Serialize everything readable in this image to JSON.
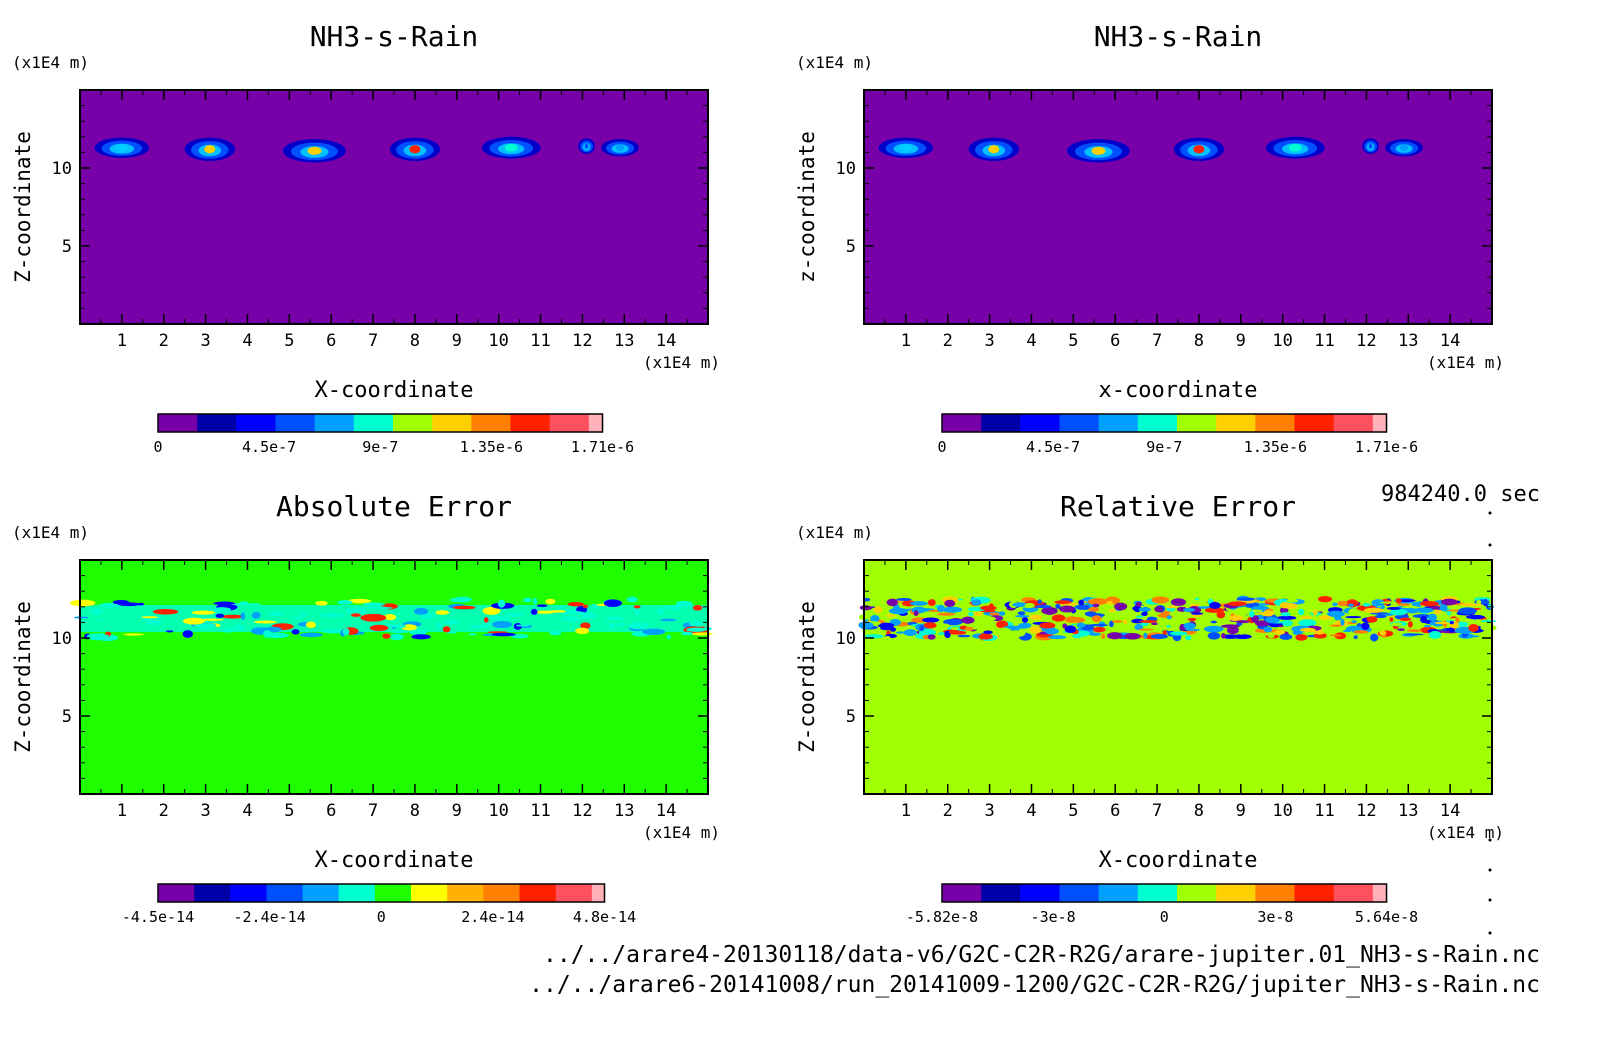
{
  "chart_data": [
    {
      "type": "heatmap",
      "title": "NH3-s-Rain",
      "unit_label": "(x1E4 m)",
      "xlabel": "X-coordinate",
      "ylabel": "Z-coordinate",
      "x_unit": "(x1E4 m)",
      "xlim": [
        0,
        15
      ],
      "ylim": [
        0,
        15
      ],
      "x_ticks": [
        1,
        2,
        3,
        4,
        5,
        6,
        7,
        8,
        9,
        10,
        11,
        12,
        13,
        14
      ],
      "y_ticks": [
        5,
        10
      ],
      "background_color": "#7800a8",
      "colorbar_colors": [
        "#7800a8",
        "#0000a8",
        "#0000ff",
        "#0050ff",
        "#00a0ff",
        "#00ffd0",
        "#a0ff00",
        "#ffd000",
        "#ff8000",
        "#ff2000",
        "#ff5060",
        "#ffb0b8"
      ],
      "colorbar_labels": [
        "0",
        "4.5e-7",
        "9e-7",
        "1.35e-6",
        "1.71e-6"
      ],
      "features": [
        {
          "x": 1.0,
          "z": 11.3,
          "w": 1.3,
          "h": 1.3,
          "peak": "#00d0ff"
        },
        {
          "x": 3.1,
          "z": 11.2,
          "w": 1.2,
          "h": 1.5,
          "peak": "#ffd000"
        },
        {
          "x": 5.6,
          "z": 11.1,
          "w": 1.5,
          "h": 1.5,
          "peak": "#ffd000"
        },
        {
          "x": 8.0,
          "z": 11.2,
          "w": 1.2,
          "h": 1.5,
          "peak": "#ff2000"
        },
        {
          "x": 10.3,
          "z": 11.3,
          "w": 1.4,
          "h": 1.4,
          "peak": "#00ffd0"
        },
        {
          "x": 12.1,
          "z": 11.4,
          "w": 0.4,
          "h": 1.0,
          "peak": "#0050ff"
        },
        {
          "x": 12.9,
          "z": 11.3,
          "w": 0.9,
          "h": 1.1,
          "peak": "#00a0ff"
        }
      ]
    },
    {
      "type": "heatmap",
      "title": "NH3-s-Rain",
      "unit_label": "(x1E4 m)",
      "xlabel": "x-coordinate",
      "ylabel": "z-coordinate",
      "x_unit": "(x1E4 m)",
      "xlim": [
        0,
        15
      ],
      "ylim": [
        0,
        15
      ],
      "x_ticks": [
        1,
        2,
        3,
        4,
        5,
        6,
        7,
        8,
        9,
        10,
        11,
        12,
        13,
        14
      ],
      "y_ticks": [
        5,
        10
      ],
      "background_color": "#7800a8",
      "colorbar_colors": [
        "#7800a8",
        "#0000a8",
        "#0000ff",
        "#0050ff",
        "#00a0ff",
        "#00ffd0",
        "#a0ff00",
        "#ffd000",
        "#ff8000",
        "#ff2000",
        "#ff5060",
        "#ffb0b8"
      ],
      "colorbar_labels": [
        "0",
        "4.5e-7",
        "9e-7",
        "1.35e-6",
        "1.71e-6"
      ],
      "features": [
        {
          "x": 1.0,
          "z": 11.3,
          "w": 1.3,
          "h": 1.3,
          "peak": "#00d0ff"
        },
        {
          "x": 3.1,
          "z": 11.2,
          "w": 1.2,
          "h": 1.5,
          "peak": "#ffd000"
        },
        {
          "x": 5.6,
          "z": 11.1,
          "w": 1.5,
          "h": 1.5,
          "peak": "#ffd000"
        },
        {
          "x": 8.0,
          "z": 11.2,
          "w": 1.2,
          "h": 1.5,
          "peak": "#ff2000"
        },
        {
          "x": 10.3,
          "z": 11.3,
          "w": 1.4,
          "h": 1.4,
          "peak": "#00ffd0"
        },
        {
          "x": 12.1,
          "z": 11.4,
          "w": 0.4,
          "h": 1.0,
          "peak": "#0050ff"
        },
        {
          "x": 12.9,
          "z": 11.3,
          "w": 0.9,
          "h": 1.1,
          "peak": "#00a0ff"
        }
      ]
    },
    {
      "type": "heatmap",
      "title": "Absolute Error",
      "unit_label": "(x1E4 m)",
      "xlabel": "X-coordinate",
      "ylabel": "Z-coordinate",
      "x_unit": "(x1E4 m)",
      "xlim": [
        0,
        15
      ],
      "ylim": [
        0,
        15
      ],
      "x_ticks": [
        1,
        2,
        3,
        4,
        5,
        6,
        7,
        8,
        9,
        10,
        11,
        12,
        13,
        14
      ],
      "y_ticks": [
        5,
        10
      ],
      "background_color": "#20ff00",
      "band_color": "#00ffd0",
      "band_z": [
        10.0,
        12.5
      ],
      "colorbar_colors": [
        "#7800a8",
        "#0000a8",
        "#0000ff",
        "#0050ff",
        "#00a0ff",
        "#00ffd0",
        "#20ff00",
        "#ffff00",
        "#ffb000",
        "#ff8000",
        "#ff2000",
        "#ff5060",
        "#ffb0b8"
      ],
      "colorbar_labels": [
        "-4.5e-14",
        "-2.4e-14",
        "0",
        "2.4e-14",
        "4.8e-14"
      ]
    },
    {
      "type": "heatmap",
      "title": "Relative Error",
      "unit_label": "(x1E4 m)",
      "xlabel": "X-coordinate",
      "ylabel": "Z-coordinate",
      "x_unit": "(x1E4 m)",
      "xlim": [
        0,
        15
      ],
      "ylim": [
        0,
        15
      ],
      "x_ticks": [
        1,
        2,
        3,
        4,
        5,
        6,
        7,
        8,
        9,
        10,
        11,
        12,
        13,
        14
      ],
      "y_ticks": [
        5,
        10
      ],
      "background_color": "#a0ff00",
      "band_color": "#00a0ff",
      "band_z": [
        10.0,
        12.5
      ],
      "colorbar_colors": [
        "#7800a8",
        "#0000a8",
        "#0000ff",
        "#0050ff",
        "#00a0ff",
        "#00ffd0",
        "#a0ff00",
        "#ffd000",
        "#ff8000",
        "#ff2000",
        "#ff5060",
        "#ffb0b8"
      ],
      "colorbar_labels": [
        "-5.82e-8",
        "-3e-8",
        "0",
        "3e-8",
        "5.64e-8"
      ]
    }
  ],
  "time_label": "984240.0 sec",
  "footer": {
    "line1": "../../arare4-20130118/data-v6/G2C-C2R-R2G/arare-jupiter.01_NH3-s-Rain.nc",
    "line2": "../../arare6-20141008/run_20141009-1200/G2C-C2R-R2G/jupiter_NH3-s-Rain.nc"
  }
}
